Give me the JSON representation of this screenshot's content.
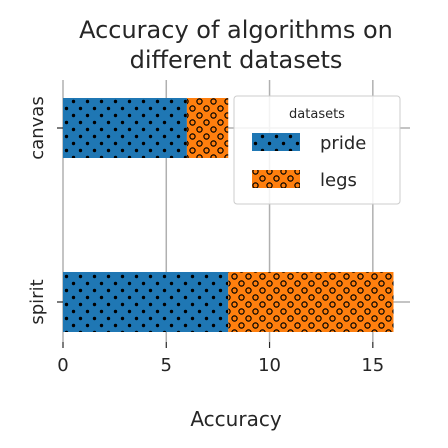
{
  "chart_data": {
    "type": "bar",
    "orientation": "horizontal",
    "stacked": true,
    "title_lines": [
      "Accuracy of algorithms on",
      "different datasets"
    ],
    "xlabel": "Accuracy",
    "ylabel": "",
    "categories": [
      "spirit",
      "canvas"
    ],
    "series": [
      {
        "name": "pride",
        "values": [
          8,
          6
        ],
        "color": "#1f77b4",
        "hatch": "dots"
      },
      {
        "name": "legs",
        "values": [
          8,
          2
        ],
        "color": "#ff7f0e",
        "hatch": "circles"
      }
    ],
    "xlim": [
      0,
      16.8
    ],
    "xticks": [
      0,
      5,
      10,
      15
    ],
    "grid": true,
    "legend": {
      "title": "datasets",
      "placement": "top-right"
    }
  }
}
